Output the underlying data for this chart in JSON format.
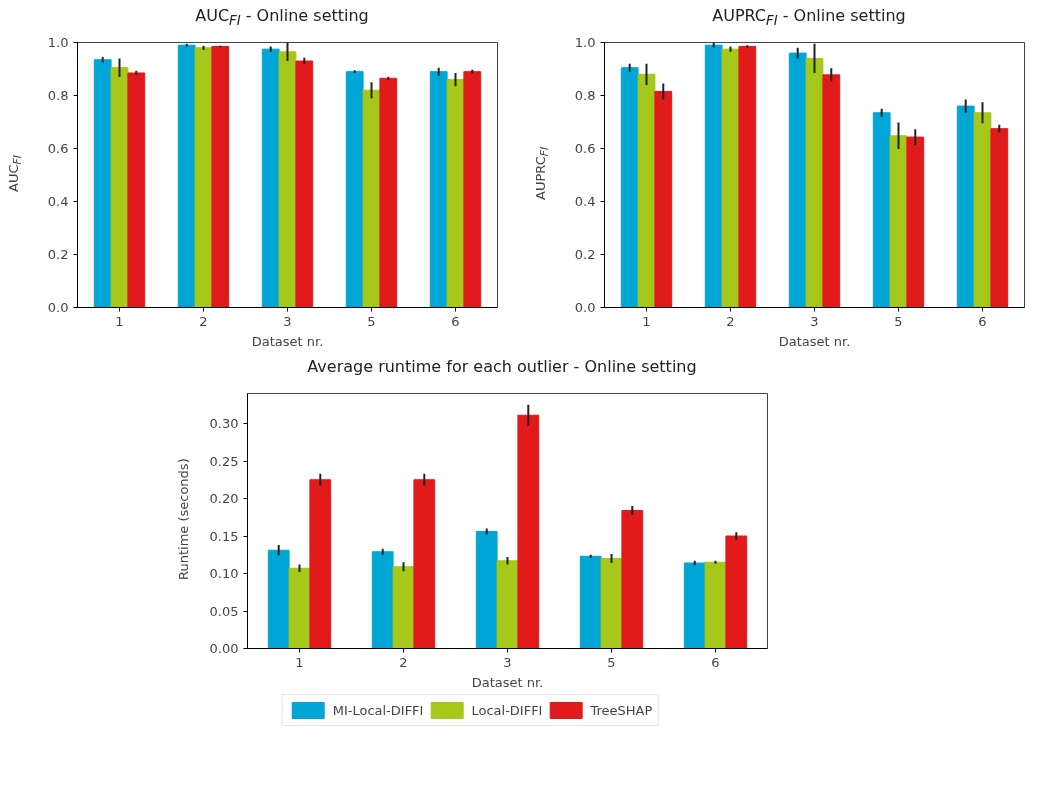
{
  "chart_data": [
    {
      "type": "bar",
      "title": "AUC$_{FI}$ - Online setting",
      "xlabel": "Dataset nr.",
      "ylabel": "AUC$_{FI}$",
      "categories": [
        "1",
        "2",
        "3",
        "5",
        "6"
      ],
      "ylim": [
        0,
        1.0
      ],
      "yticks": [
        {
          "value": 0,
          "label": "0.0"
        },
        {
          "value": 0.2,
          "label": "0.2"
        },
        {
          "value": 0.4,
          "label": "0.4"
        },
        {
          "value": 0.6,
          "label": "0.6"
        },
        {
          "value": 0.8,
          "label": "0.8"
        },
        {
          "value": 1,
          "label": "1.0"
        }
      ],
      "grid": false,
      "series": [
        {
          "color": "#00a6d6",
          "values": [
            0.935,
            0.99,
            0.975,
            0.89,
            0.89
          ],
          "errors": [
            0.01,
            0.005,
            0.01,
            0.005,
            0.015
          ]
        },
        {
          "color": "#a5c81a",
          "values": [
            0.905,
            0.98,
            0.965,
            0.82,
            0.86
          ],
          "errors": [
            0.035,
            0.008,
            0.035,
            0.03,
            0.025
          ]
        },
        {
          "color": "#e11b1c",
          "values": [
            0.885,
            0.985,
            0.93,
            0.865,
            0.89
          ],
          "errors": [
            0.008,
            0.003,
            0.012,
            0.006,
            0.007
          ]
        }
      ]
    },
    {
      "type": "bar",
      "title": "AUPRC$_{FI}$ - Online setting",
      "xlabel": "Dataset nr.",
      "ylabel": "AUPRC$_{FI}$",
      "categories": [
        "1",
        "2",
        "3",
        "5",
        "6"
      ],
      "ylim": [
        0,
        1.0
      ],
      "yticks": [
        {
          "value": 0,
          "label": "0.0"
        },
        {
          "value": 0.2,
          "label": "0.2"
        },
        {
          "value": 0.4,
          "label": "0.4"
        },
        {
          "value": 0.6,
          "label": "0.6"
        },
        {
          "value": 0.8,
          "label": "0.8"
        },
        {
          "value": 1,
          "label": "1.0"
        }
      ],
      "grid": false,
      "series": [
        {
          "color": "#00a6d6",
          "values": [
            0.905,
            0.99,
            0.96,
            0.735,
            0.76
          ],
          "errors": [
            0.015,
            0.008,
            0.02,
            0.015,
            0.025
          ]
        },
        {
          "color": "#a5c81a",
          "values": [
            0.88,
            0.975,
            0.94,
            0.648,
            0.735
          ],
          "errors": [
            0.04,
            0.01,
            0.055,
            0.05,
            0.04
          ]
        },
        {
          "color": "#e11b1c",
          "values": [
            0.815,
            0.985,
            0.878,
            0.643,
            0.675
          ],
          "errors": [
            0.03,
            0.005,
            0.025,
            0.03,
            0.015
          ]
        }
      ]
    },
    {
      "type": "bar",
      "title": "Average runtime for each outlier - Online setting",
      "xlabel": "Dataset nr.",
      "ylabel": "Runtime (seconds)",
      "categories": [
        "1",
        "2",
        "3",
        "5",
        "6"
      ],
      "ylim": [
        0,
        0.34
      ],
      "yticks": [
        {
          "value": 0,
          "label": "0.00"
        },
        {
          "value": 0.05,
          "label": "0.05"
        },
        {
          "value": 0.1,
          "label": "0.10"
        },
        {
          "value": 0.15,
          "label": "0.15"
        },
        {
          "value": 0.2,
          "label": "0.20"
        },
        {
          "value": 0.25,
          "label": "0.25"
        },
        {
          "value": 0.3,
          "label": "0.30"
        }
      ],
      "grid": false,
      "legend": "bottom",
      "series": [
        {
          "name": "MI-Local-DIFFI",
          "color": "#00a6d6",
          "values": [
            0.131,
            0.129,
            0.156,
            0.123,
            0.114
          ],
          "errors": [
            0.007,
            0.004,
            0.004,
            0.002,
            0.003
          ]
        },
        {
          "name": "Local-DIFFI",
          "color": "#a5c81a",
          "values": [
            0.107,
            0.109,
            0.117,
            0.12,
            0.115
          ],
          "errors": [
            0.005,
            0.006,
            0.005,
            0.006,
            0.002
          ]
        },
        {
          "name": "TreeSHAP",
          "color": "#e11b1c",
          "values": [
            0.225,
            0.225,
            0.311,
            0.184,
            0.15
          ],
          "errors": [
            0.008,
            0.008,
            0.014,
            0.006,
            0.005
          ]
        }
      ]
    }
  ]
}
